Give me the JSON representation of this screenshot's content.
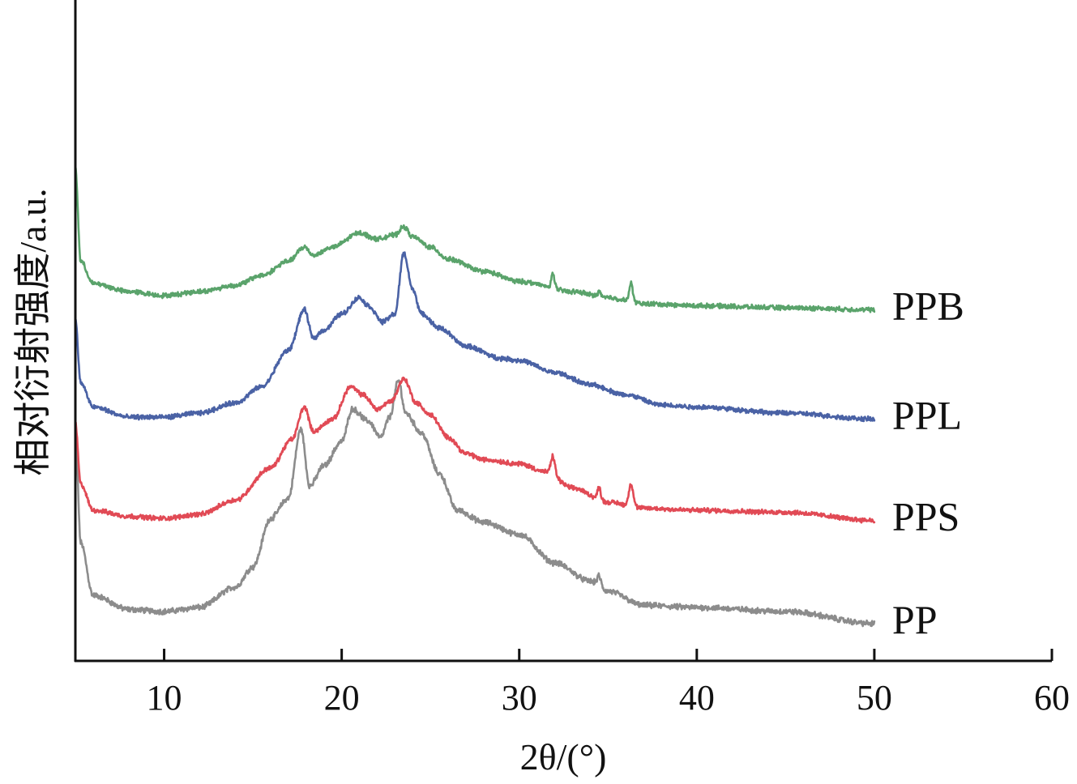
{
  "chart_data": {
    "type": "line",
    "xlabel": "2θ/(°)",
    "ylabel": "相对衍射强度/a.u.",
    "xlim": [
      5,
      60
    ],
    "xticks": [
      10,
      20,
      30,
      40,
      50,
      60
    ],
    "y_axis_ticks": "none",
    "grid": false,
    "legend": "labels at right end of each curve",
    "series": [
      {
        "name": "PP",
        "color": "#8c8c8c",
        "offset": 0.0,
        "noise": 0.055,
        "points": [
          [
            5,
            4.8
          ],
          [
            5.3,
            2.0
          ],
          [
            6,
            0.7
          ],
          [
            8,
            0.35
          ],
          [
            10,
            0.3
          ],
          [
            12,
            0.4
          ],
          [
            14,
            0.9
          ],
          [
            15,
            1.4
          ],
          [
            16,
            2.6
          ],
          [
            17,
            3.1
          ],
          [
            17.7,
            4.8
          ],
          [
            18.2,
            3.4
          ],
          [
            19,
            3.9
          ],
          [
            20,
            4.5
          ],
          [
            20.6,
            5.3
          ],
          [
            21.5,
            5.0
          ],
          [
            22.2,
            4.6
          ],
          [
            22.7,
            5.1
          ],
          [
            23.2,
            6.0
          ],
          [
            23.6,
            5.2
          ],
          [
            24.5,
            4.7
          ],
          [
            25.5,
            3.7
          ],
          [
            26.5,
            2.8
          ],
          [
            28,
            2.5
          ],
          [
            30,
            2.2
          ],
          [
            32,
            1.5
          ],
          [
            34,
            1.05
          ],
          [
            35,
            0.8
          ],
          [
            37,
            0.45
          ],
          [
            40,
            0.4
          ],
          [
            45,
            0.3
          ],
          [
            50,
            0.0
          ]
        ],
        "peaks": [
          [
            34.5,
            0.25,
            0.15
          ]
        ]
      },
      {
        "name": "PPS",
        "color": "#e14a55",
        "offset": 2.55,
        "noise": 0.045,
        "points": [
          [
            5,
            2.4
          ],
          [
            5.3,
            0.9
          ],
          [
            6,
            0.25
          ],
          [
            8,
            0.1
          ],
          [
            10,
            0.05
          ],
          [
            12,
            0.15
          ],
          [
            14,
            0.5
          ],
          [
            16,
            1.3
          ],
          [
            17.2,
            2.0
          ],
          [
            17.9,
            2.8
          ],
          [
            18.4,
            2.2
          ],
          [
            19.5,
            2.5
          ],
          [
            20.5,
            3.3
          ],
          [
            21.2,
            3.1
          ],
          [
            22.0,
            2.75
          ],
          [
            22.8,
            2.95
          ],
          [
            23.5,
            3.5
          ],
          [
            24.2,
            2.9
          ],
          [
            25,
            2.6
          ],
          [
            26,
            2.05
          ],
          [
            27,
            1.65
          ],
          [
            28,
            1.5
          ],
          [
            30,
            1.4
          ],
          [
            31.5,
            1.2
          ],
          [
            33,
            0.8
          ],
          [
            35,
            0.45
          ],
          [
            37,
            0.3
          ],
          [
            40,
            0.25
          ],
          [
            45,
            0.2
          ],
          [
            50,
            0.0
          ]
        ],
        "peaks": [
          [
            31.9,
            0.45,
            0.16
          ],
          [
            34.5,
            0.3,
            0.14
          ],
          [
            36.3,
            0.55,
            0.18
          ]
        ]
      },
      {
        "name": "PPL",
        "color": "#4a62a5",
        "offset": 5.05,
        "noise": 0.045,
        "points": [
          [
            5,
            2.45
          ],
          [
            5.3,
            0.9
          ],
          [
            6,
            0.3
          ],
          [
            8,
            0.05
          ],
          [
            10,
            0.05
          ],
          [
            12,
            0.15
          ],
          [
            14,
            0.4
          ],
          [
            15.5,
            0.8
          ],
          [
            17,
            1.7
          ],
          [
            17.9,
            2.7
          ],
          [
            18.4,
            2.0
          ],
          [
            19,
            2.2
          ],
          [
            20,
            2.6
          ],
          [
            21,
            3.0
          ],
          [
            21.5,
            2.8
          ],
          [
            22.3,
            2.4
          ],
          [
            23,
            2.6
          ],
          [
            23.5,
            4.1
          ],
          [
            24,
            3.2
          ],
          [
            24.5,
            2.6
          ],
          [
            25.5,
            2.25
          ],
          [
            27,
            1.8
          ],
          [
            29,
            1.5
          ],
          [
            30,
            1.45
          ],
          [
            32,
            1.15
          ],
          [
            34,
            0.85
          ],
          [
            36,
            0.6
          ],
          [
            38,
            0.35
          ],
          [
            40,
            0.3
          ],
          [
            45,
            0.15
          ],
          [
            50,
            0.0
          ]
        ],
        "peaks": []
      },
      {
        "name": "PPB",
        "color": "#5aa36b",
        "offset": 7.75,
        "noise": 0.045,
        "points": [
          [
            5,
            3.5
          ],
          [
            5.3,
            1.2
          ],
          [
            6,
            0.65
          ],
          [
            8,
            0.45
          ],
          [
            10,
            0.35
          ],
          [
            12,
            0.45
          ],
          [
            14,
            0.6
          ],
          [
            15.5,
            0.85
          ],
          [
            17,
            1.2
          ],
          [
            17.9,
            1.55
          ],
          [
            18.4,
            1.35
          ],
          [
            19.5,
            1.55
          ],
          [
            21,
            1.9
          ],
          [
            22,
            1.75
          ],
          [
            23,
            1.85
          ],
          [
            23.5,
            2.05
          ],
          [
            24,
            1.8
          ],
          [
            25,
            1.55
          ],
          [
            26,
            1.25
          ],
          [
            28,
            0.95
          ],
          [
            30,
            0.7
          ],
          [
            33,
            0.45
          ],
          [
            35,
            0.3
          ],
          [
            37,
            0.15
          ],
          [
            40,
            0.1
          ],
          [
            45,
            0.05
          ],
          [
            50,
            0.0
          ]
        ],
        "peaks": [
          [
            31.9,
            0.38,
            0.13
          ],
          [
            34.5,
            0.14,
            0.12
          ],
          [
            36.3,
            0.45,
            0.15
          ]
        ]
      }
    ]
  }
}
